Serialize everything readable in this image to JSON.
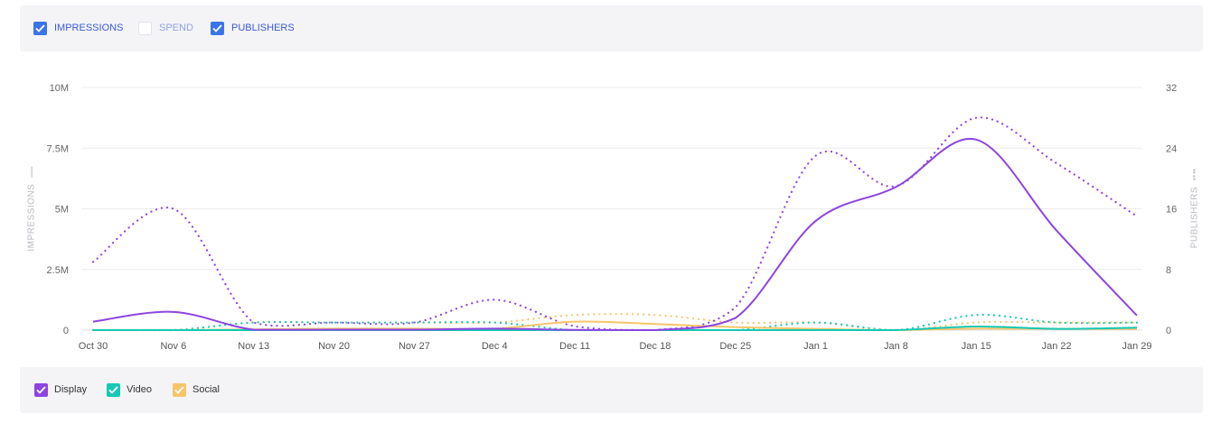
{
  "metrics": [
    {
      "label": "IMPRESSIONS",
      "checked": true
    },
    {
      "label": "SPEND",
      "checked": false
    },
    {
      "label": "PUBLISHERS",
      "checked": true
    }
  ],
  "legend": [
    {
      "label": "Display",
      "color": "#8e44e0"
    },
    {
      "label": "Video",
      "color": "#16c8b4"
    },
    {
      "label": "Social",
      "color": "#f7c46a"
    }
  ],
  "axis_titles": {
    "left": "IMPRESSIONS",
    "right": "PUBLISHERS"
  },
  "chart_data": {
    "type": "line",
    "x": [
      "Oct 30",
      "Nov 6",
      "Nov 13",
      "Nov 20",
      "Nov 27",
      "Dec 4",
      "Dec 11",
      "Dec 18",
      "Dec 25",
      "Jan 1",
      "Jan 8",
      "Jan 15",
      "Jan 22",
      "Jan 29"
    ],
    "y_left": {
      "label": "IMPRESSIONS",
      "range": [
        0,
        10000000
      ],
      "ticks": [
        "0",
        "2.5M",
        "5M",
        "7.5M",
        "10M"
      ],
      "tick_values": [
        0,
        2500000,
        5000000,
        7500000,
        10000000
      ]
    },
    "y_right": {
      "label": "PUBLISHERS",
      "range": [
        0,
        32
      ],
      "ticks": [
        "0",
        "8",
        "16",
        "24",
        "32"
      ],
      "tick_values": [
        0,
        8,
        16,
        24,
        32
      ]
    },
    "grid": true,
    "series": [
      {
        "name": "Display",
        "metric": "IMPRESSIONS",
        "axis": "left",
        "style": "solid",
        "color": "#8e44e0",
        "values": [
          350000,
          750000,
          20000,
          20000,
          20000,
          60000,
          10000,
          0,
          500000,
          4500000,
          5900000,
          7850000,
          4100000,
          600000
        ]
      },
      {
        "name": "Video",
        "metric": "IMPRESSIONS",
        "axis": "left",
        "style": "solid",
        "color": "#16c8b4",
        "values": [
          0,
          0,
          0,
          0,
          0,
          0,
          0,
          0,
          0,
          0,
          0,
          150000,
          50000,
          100000
        ]
      },
      {
        "name": "Social",
        "metric": "IMPRESSIONS",
        "axis": "left",
        "style": "solid",
        "color": "#f7c46a",
        "values": [
          0,
          0,
          30000,
          60000,
          60000,
          60000,
          350000,
          250000,
          120000,
          50000,
          0,
          60000,
          50000,
          50000
        ]
      },
      {
        "name": "Display",
        "metric": "PUBLISHERS",
        "axis": "right",
        "style": "dotted",
        "color": "#8e44e0",
        "values": [
          9,
          16,
          1,
          1,
          1,
          4,
          0.5,
          0,
          3,
          23,
          19,
          28,
          22,
          15
        ]
      },
      {
        "name": "Video",
        "metric": "PUBLISHERS",
        "axis": "right",
        "style": "dotted",
        "color": "#16c8b4",
        "values": [
          0,
          0,
          1,
          1,
          1,
          1,
          0,
          0,
          0,
          1,
          0,
          2,
          1,
          1
        ]
      },
      {
        "name": "Social",
        "metric": "PUBLISHERS",
        "axis": "right",
        "style": "dotted",
        "color": "#f7c46a",
        "values": [
          0,
          0,
          1,
          1,
          1,
          1,
          2,
          2,
          1,
          1,
          0,
          1,
          1,
          1
        ]
      }
    ]
  }
}
